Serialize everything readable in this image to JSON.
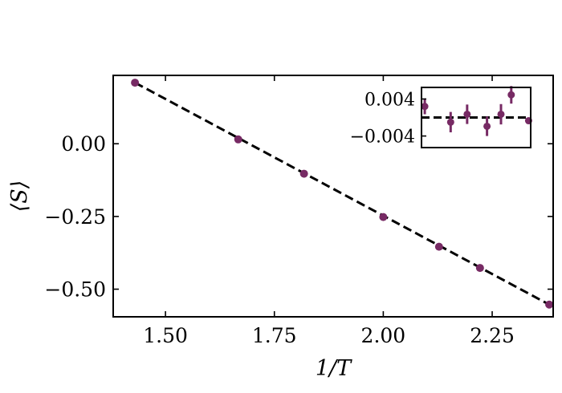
{
  "chart_data": [
    {
      "type": "scatter",
      "xlabel": "1/T",
      "ylabel": "⟨S⟩",
      "xlim": [
        1.38,
        2.39
      ],
      "ylim": [
        -0.595,
        0.235
      ],
      "xticks": [
        1.5,
        1.75,
        2.0,
        2.25
      ],
      "xtick_labels": [
        "1.50",
        "1.75",
        "2.00",
        "2.25"
      ],
      "yticks": [
        0.0,
        -0.25,
        -0.5
      ],
      "ytick_labels": [
        "0.00",
        "−0.25",
        "−0.50"
      ],
      "grid": false,
      "series": [
        {
          "kind": "points",
          "color": "#772a64",
          "x": [
            1.43,
            1.667,
            1.818,
            2.0,
            2.128,
            2.222,
            2.381
          ],
          "y": [
            0.21,
            0.015,
            -0.103,
            -0.252,
            -0.354,
            -0.427,
            -0.553
          ]
        },
        {
          "kind": "fit-line",
          "color": "#000000",
          "dash": true,
          "x": [
            1.43,
            2.381
          ],
          "y": [
            0.21,
            -0.553
          ]
        }
      ]
    },
    {
      "type": "scatter",
      "role": "inset-residuals",
      "xlim": [
        1.4,
        2.4
      ],
      "ylim": [
        -0.0065,
        0.0065
      ],
      "yticks": [
        0.004,
        -0.004
      ],
      "ytick_labels": [
        "0.004",
        "−0.004"
      ],
      "reference_line": {
        "y": 0.0,
        "color": "#000000",
        "dash": true
      },
      "series": [
        {
          "color": "#772a64",
          "x": [
            1.43,
            1.667,
            1.818,
            2.0,
            2.128,
            2.222,
            2.381
          ],
          "y": [
            0.0024,
            -0.001,
            0.0007,
            -0.0019,
            0.0007,
            0.0049,
            -0.0007
          ],
          "yerr": [
            0.0017,
            0.0022,
            0.0021,
            0.0021,
            0.0022,
            0.0019,
            0.0004
          ]
        }
      ]
    }
  ]
}
